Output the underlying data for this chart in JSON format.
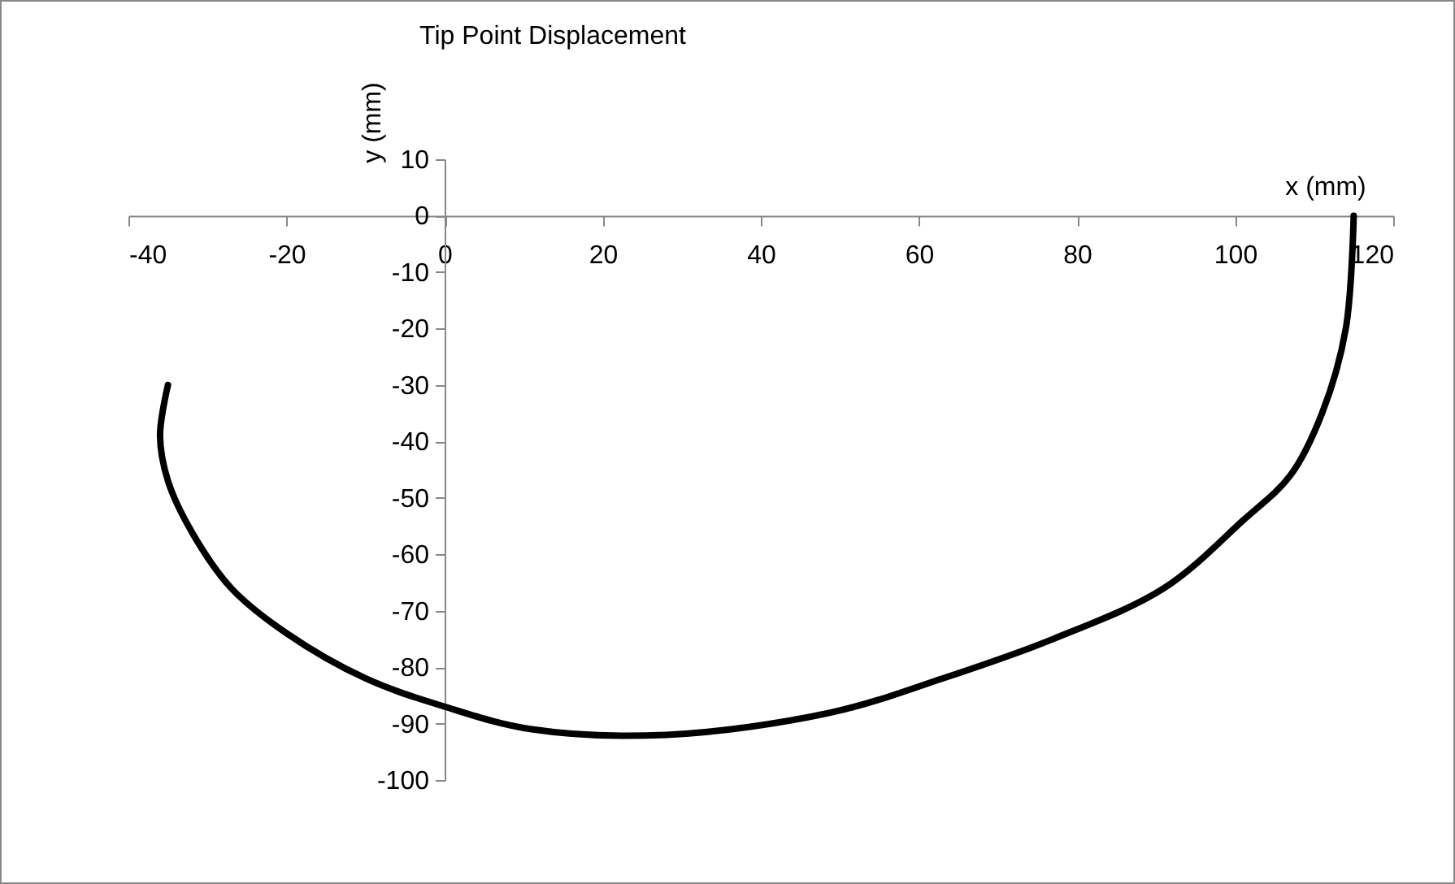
{
  "chart_data": {
    "type": "line",
    "title": "Tip Point Displacement",
    "xlabel": "x (mm)",
    "ylabel": "y (mm)",
    "x": [
      115,
      114,
      111,
      107,
      101,
      91,
      77,
      63,
      49,
      28,
      11,
      0,
      -10,
      -20,
      -27,
      -32,
      -35,
      -36,
      -35
    ],
    "series": [
      {
        "color": "#000000",
        "values": [
          0,
          -20,
          -35,
          -46,
          -54,
          -66,
          -75,
          -82,
          -88,
          -92,
          -91,
          -87,
          -82,
          -74,
          -66,
          -56,
          -47,
          -39,
          -30
        ]
      }
    ],
    "xlim": [
      -40,
      120
    ],
    "ylim": [
      -100,
      10
    ],
    "xticks": [
      -40,
      -20,
      0,
      20,
      40,
      60,
      80,
      100,
      120
    ],
    "yticks": [
      -100,
      -90,
      -80,
      -70,
      -60,
      -50,
      -40,
      -30,
      -20,
      -10,
      0,
      10
    ],
    "line_style": "solid"
  }
}
